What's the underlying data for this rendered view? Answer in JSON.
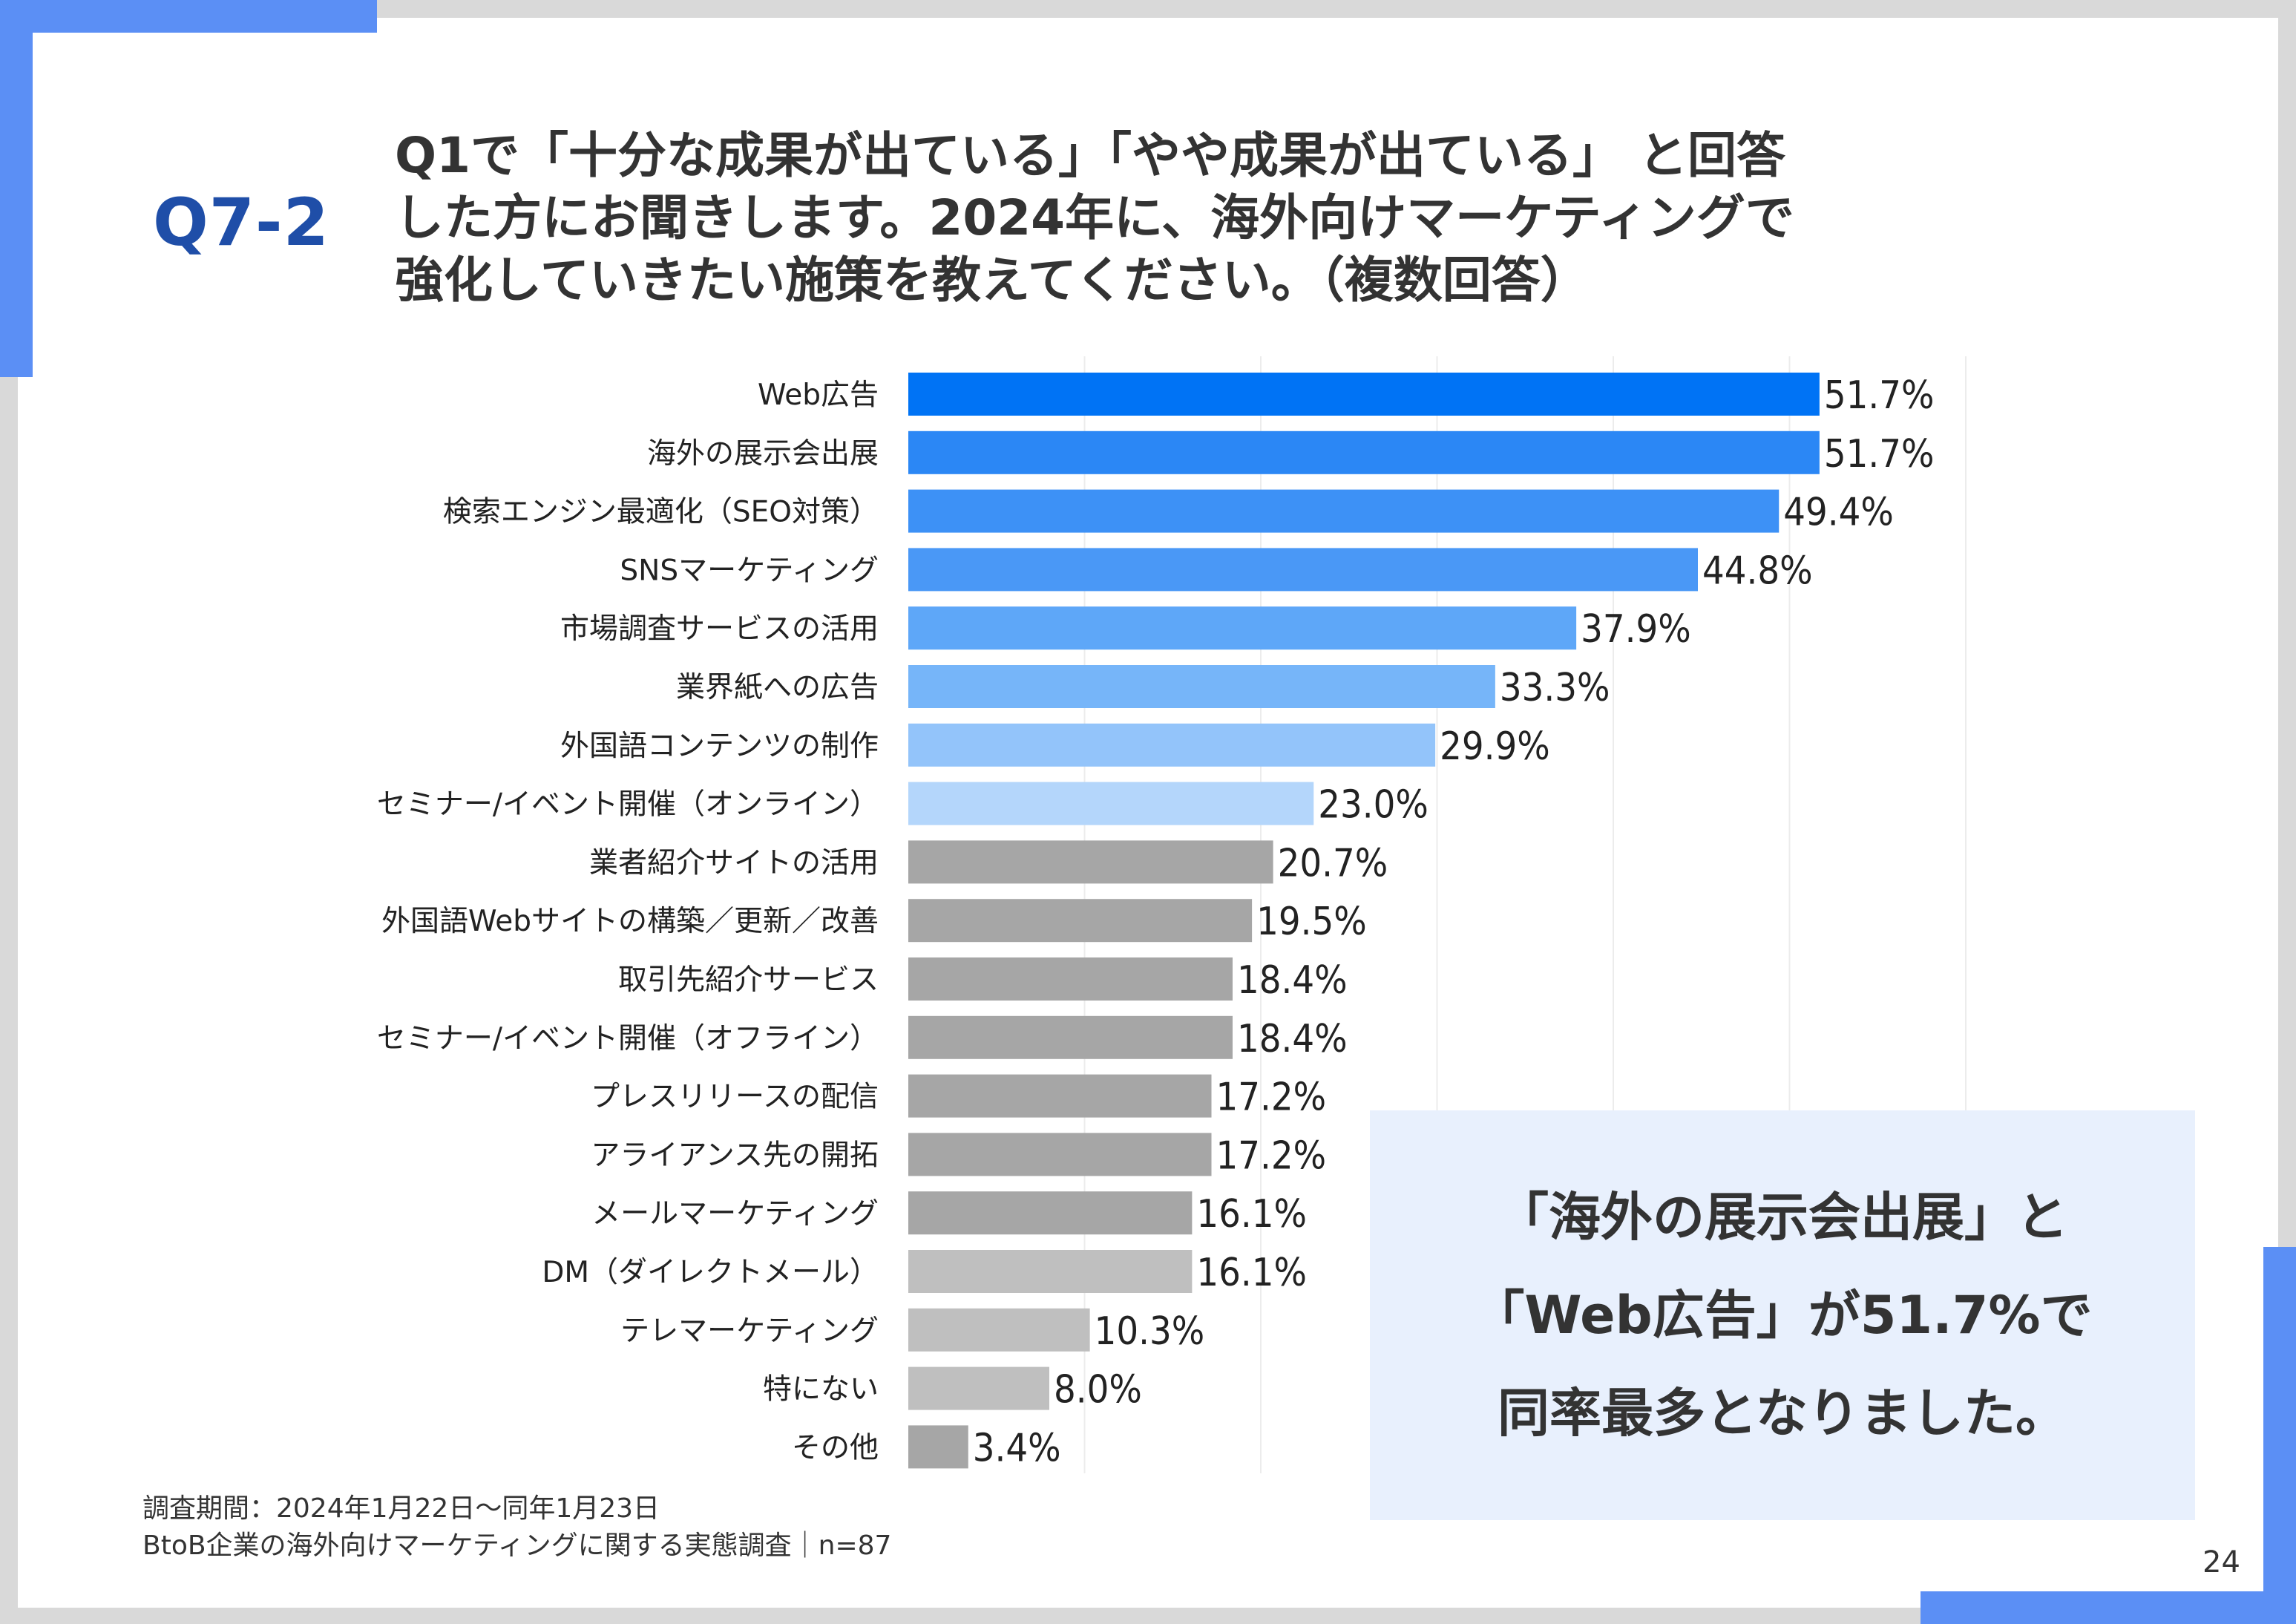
{
  "header": {
    "question_number": "Q7-2",
    "question_lines": [
      "Q1で「十分な成果が出ている」「やや成果が出ている」 と回答",
      "した方にお聞きします。2024年に、海外向けマーケティングで",
      "強化していきたい施策を教えてください。（複数回答）"
    ]
  },
  "chart_data": {
    "type": "bar",
    "orientation": "horizontal",
    "categories": [
      "Web広告",
      "海外の展示会出展",
      "検索エンジン最適化（SEO対策）",
      "SNSマーケティング",
      "市場調査サービスの活用",
      "業界紙への広告",
      "外国語コンテンツの制作",
      "セミナー/イベント開催（オンライン）",
      "業者紹介サイトの活用",
      "外国語Webサイトの構築／更新／改善",
      "取引先紹介サービス",
      "セミナー/イベント開催（オフライン）",
      "プレスリリースの配信",
      "アライアンス先の開拓",
      "メールマーケティング",
      "DM（ダイレクトメール）",
      "テレマーケティング",
      "特にない",
      "その他"
    ],
    "values": [
      51.7,
      51.7,
      49.4,
      44.8,
      37.9,
      33.3,
      29.9,
      23.0,
      20.7,
      19.5,
      18.4,
      18.4,
      17.2,
      17.2,
      16.1,
      16.1,
      10.3,
      8.0,
      3.4
    ],
    "value_labels": [
      "51.7%",
      "51.7%",
      "49.4%",
      "44.8%",
      "37.9%",
      "33.3%",
      "29.9%",
      "23.0%",
      "20.7%",
      "19.5%",
      "18.4%",
      "18.4%",
      "17.2%",
      "17.2%",
      "16.1%",
      "16.1%",
      "10.3%",
      "8.0%",
      "3.4%"
    ],
    "colors": [
      "#0073f5",
      "#2b87f5",
      "#3d91f6",
      "#4a98f6",
      "#5ea7f8",
      "#76b5f9",
      "#93c4fa",
      "#b4d6fb",
      "#a6a6a6",
      "#a6a6a6",
      "#a6a6a6",
      "#a6a6a6",
      "#a6a6a6",
      "#a6a6a6",
      "#a6a6a6",
      "#bfbfbf",
      "#bfbfbf",
      "#bfbfbf",
      "#a6a6a6"
    ],
    "xlim": [
      0,
      60
    ],
    "grid": true,
    "unit": "%"
  },
  "callout": {
    "lines": [
      "「海外の展示会出展」と",
      "「Web広告」が51.7%で",
      "同率最多となりました。"
    ]
  },
  "footnote": {
    "period": "調査期間：2024年1月22日～同年1月23日",
    "survey": "BtoB企業の海外向けマーケティングに関する実態調査｜n=87"
  },
  "page_number": "24"
}
